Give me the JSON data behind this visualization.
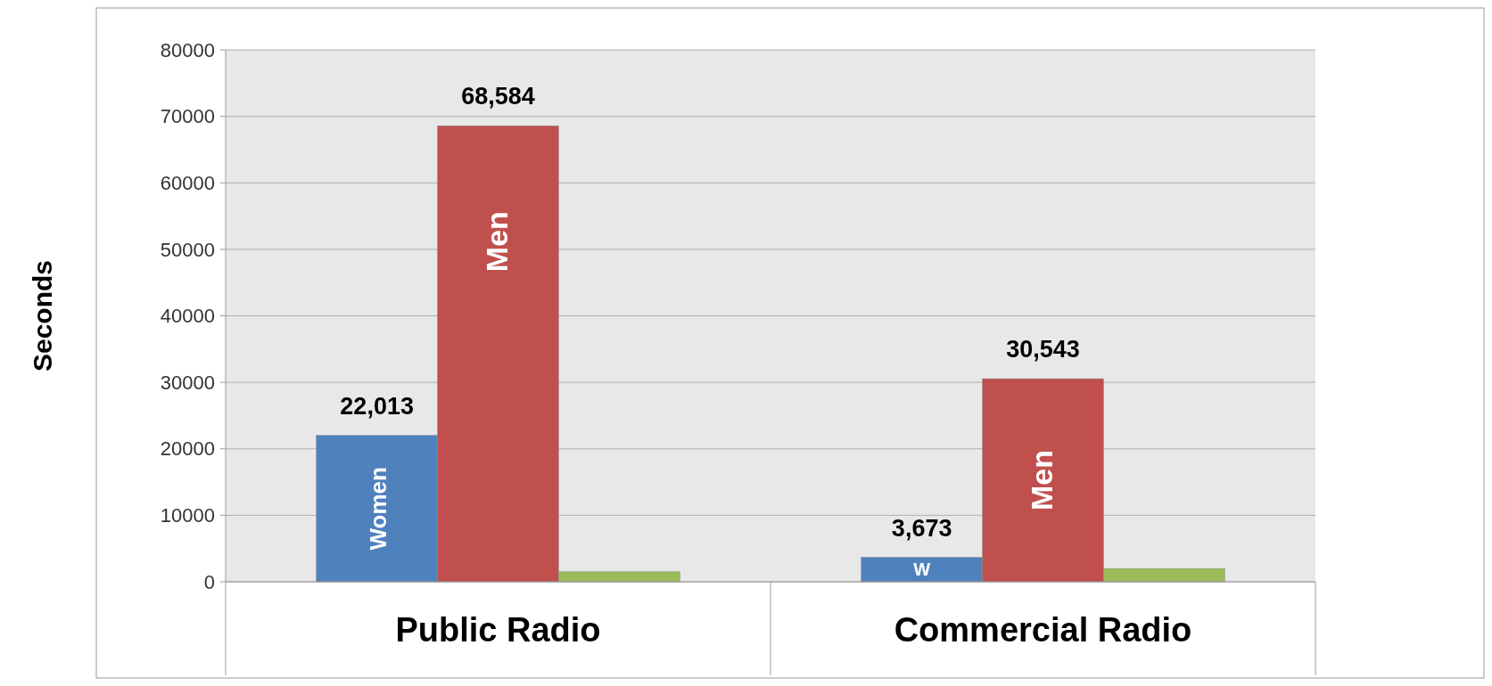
{
  "chart_data": {
    "type": "bar",
    "ylabel": "Seconds",
    "categories": [
      "Public Radio",
      "Commercial Radio"
    ],
    "series": [
      {
        "name": "Women",
        "color": "#4f81bd",
        "values": [
          22013,
          3673
        ],
        "value_labels": [
          "22,013",
          "3,673"
        ]
      },
      {
        "name": "Men",
        "color": "#c0504d",
        "values": [
          68584,
          30543
        ],
        "value_labels": [
          "68,584",
          "30,543"
        ]
      },
      {
        "color": "#9bbb59",
        "values": [
          1500,
          2000
        ],
        "value_labels": [
          null,
          null
        ]
      }
    ],
    "annotations": [
      "W"
    ],
    "ylim": [
      0,
      80000
    ],
    "yticks": [
      0,
      10000,
      20000,
      30000,
      40000,
      50000,
      60000,
      70000,
      80000
    ],
    "grid": "y"
  }
}
